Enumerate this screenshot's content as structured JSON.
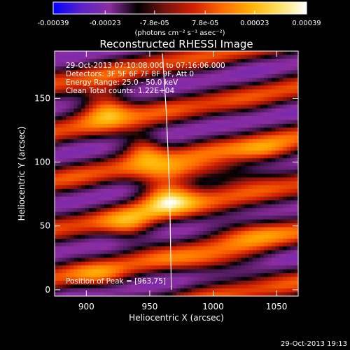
{
  "chart_data": {
    "type": "heatmap",
    "title": "Reconstructed RHESSI Image",
    "info": [
      "29-Oct-2013 07:10:08.000 to 07:16:06.000",
      "Detectors: 3F 5F 6F 7F 8F 9F, Att 0",
      "Energy Range: 25.0 - 50.0 keV",
      "Clean     Total counts: 1.22E+04"
    ],
    "peak_text": "Position of Peak = [963,75]",
    "peak": [
      963,
      75
    ],
    "xlabel": "Heliocentric X (arcsec)",
    "ylabel": "Heliocentric Y (arcsec)",
    "xlim": [
      875,
      1067
    ],
    "ylim": [
      -5,
      187
    ],
    "xticks": [
      900,
      950,
      1000,
      1050
    ],
    "yticks": [
      0,
      50,
      100,
      150
    ],
    "colorbar": {
      "ticks": [
        "-0.00039",
        "-0.00023",
        "-7.8e-05",
        "7.8e-05",
        "0.00023",
        "0.00039"
      ],
      "unit_label": "(photons cm⁻² s⁻¹ asec⁻²)",
      "range": [
        -0.00039,
        0.00039
      ],
      "colors": [
        "#0000ff",
        "#5a23c8",
        "#8c2d9f",
        "#000000",
        "#7a1210",
        "#d22000",
        "#ff6a00",
        "#ffb000",
        "#ffe060",
        "#ffffff"
      ]
    },
    "sources": [
      {
        "x": 963,
        "y": 75,
        "amp": 1.0,
        "sx": 16,
        "sy": 11
      },
      {
        "x": 915,
        "y": 145,
        "amp": 0.9,
        "sx": 14,
        "sy": 10
      },
      {
        "x": 945,
        "y": 112,
        "amp": 0.75,
        "sx": 12,
        "sy": 8
      },
      {
        "x": 995,
        "y": 92,
        "amp": 0.6,
        "sx": 30,
        "sy": 7
      },
      {
        "x": 1040,
        "y": 108,
        "amp": 0.5,
        "sx": 18,
        "sy": 7
      },
      {
        "x": 1030,
        "y": 48,
        "amp": 0.5,
        "sx": 22,
        "sy": 8
      },
      {
        "x": 935,
        "y": 48,
        "amp": 0.55,
        "sx": 14,
        "sy": 9
      },
      {
        "x": 1000,
        "y": 20,
        "amp": 0.45,
        "sx": 25,
        "sy": 7
      },
      {
        "x": 910,
        "y": 10,
        "amp": 0.4,
        "sx": 15,
        "sy": 7
      }
    ],
    "limb": [
      [
        960,
        185
      ],
      [
        963,
        140
      ],
      [
        965,
        95
      ],
      [
        966,
        60
      ],
      [
        967,
        0
      ]
    ],
    "grid": false
  },
  "footer": {
    "timestamp": "29-Oct-2013 19:13"
  }
}
